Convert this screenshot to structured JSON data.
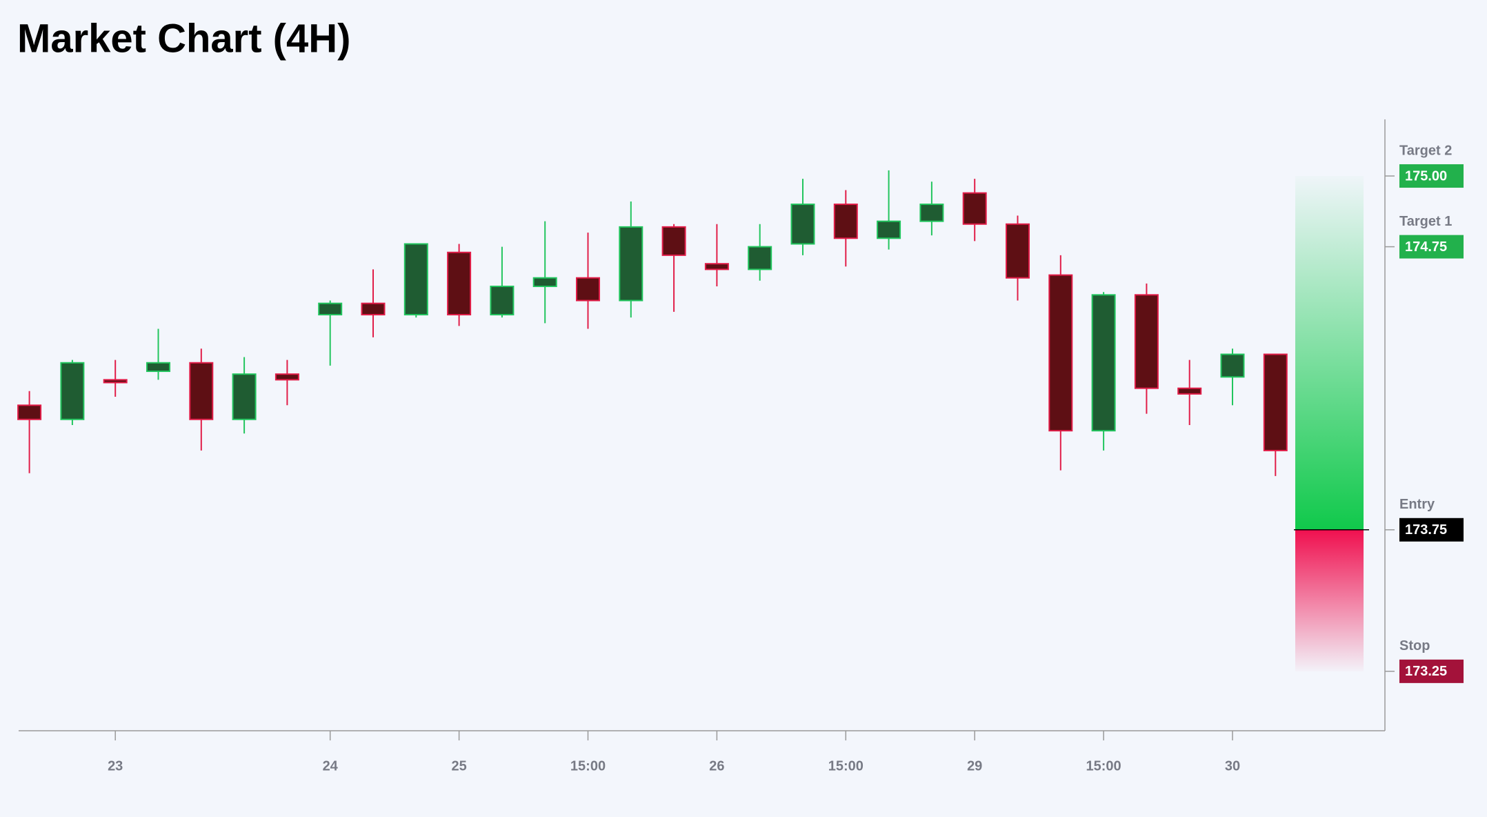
{
  "chart_data": {
    "type": "candlestick",
    "title": "Market Chart (4H)",
    "categories": [
      null,
      null,
      "23",
      null,
      null,
      null,
      null,
      "24",
      null,
      null,
      "25",
      null,
      null,
      "15:00",
      null,
      null,
      "26",
      null,
      null,
      "15:00",
      null,
      null,
      "29",
      null,
      null,
      "15:00",
      null,
      null,
      "30",
      null
    ],
    "open": [
      174.19,
      174.14,
      174.28,
      174.31,
      174.34,
      174.14,
      174.3,
      174.51,
      174.55,
      174.51,
      174.73,
      174.51,
      174.61,
      174.64,
      174.56,
      174.82,
      174.69,
      174.67,
      174.76,
      174.9,
      174.78,
      174.84,
      174.94,
      174.83,
      174.65,
      174.1,
      174.58,
      174.25,
      174.29,
      174.37
    ],
    "high": [
      174.24,
      174.35,
      174.35,
      174.46,
      174.39,
      174.36,
      174.35,
      174.56,
      174.67,
      174.76,
      174.76,
      174.75,
      174.84,
      174.8,
      174.91,
      174.83,
      174.83,
      174.83,
      174.99,
      174.95,
      175.02,
      174.98,
      174.99,
      174.86,
      174.72,
      174.59,
      174.62,
      174.35,
      174.39,
      174.37
    ],
    "low": [
      173.95,
      174.12,
      174.22,
      174.28,
      174.03,
      174.09,
      174.19,
      174.33,
      174.43,
      174.5,
      174.47,
      174.5,
      174.48,
      174.46,
      174.5,
      174.52,
      174.61,
      174.63,
      174.72,
      174.68,
      174.74,
      174.79,
      174.77,
      174.56,
      173.96,
      174.03,
      174.16,
      174.12,
      174.19,
      173.94
    ],
    "close": [
      174.14,
      174.34,
      174.27,
      174.34,
      174.14,
      174.3,
      174.28,
      174.55,
      174.51,
      174.76,
      174.51,
      174.61,
      174.64,
      174.56,
      174.82,
      174.72,
      174.67,
      174.75,
      174.9,
      174.78,
      174.84,
      174.9,
      174.83,
      174.64,
      174.1,
      174.58,
      174.25,
      174.23,
      174.37,
      174.03
    ],
    "up_color": "#1f5c32",
    "up_border": "#22c55e",
    "down_color": "#5e0f14",
    "down_border": "#e11d48",
    "ylim": [
      173.04,
      175.2
    ],
    "levels": [
      {
        "name": "Target 2",
        "value": 175,
        "label": "175.00",
        "color": "#22b14c"
      },
      {
        "name": "Target 1",
        "value": 174.75,
        "label": "174.75",
        "color": "#22b14c"
      },
      {
        "name": "Entry",
        "value": 173.75,
        "label": "173.75",
        "color": "#000000"
      },
      {
        "name": "Stop",
        "value": 173.25,
        "label": "173.25",
        "color": "#a3123a"
      }
    ]
  }
}
